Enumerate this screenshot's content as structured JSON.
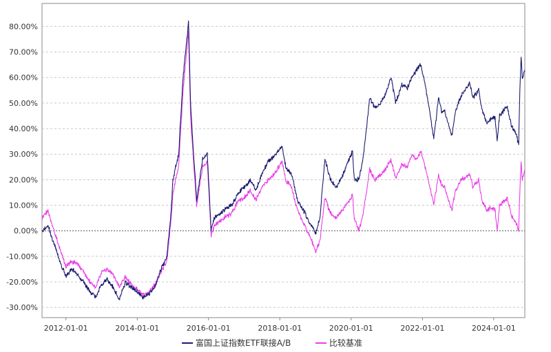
{
  "chart_data": {
    "type": "line",
    "title": "",
    "xlabel": "",
    "ylabel": "",
    "xlim": [
      "2011-05-01",
      "2024-11-15"
    ],
    "ylim": [
      -0.34,
      0.89
    ],
    "y_tick_values": [
      -0.3,
      -0.2,
      -0.1,
      0.0,
      0.1,
      0.2,
      0.3,
      0.4,
      0.5,
      0.6,
      0.7,
      0.8
    ],
    "y_tick_labels": [
      "-30.00%",
      "-20.00%",
      "-10.00%",
      "0.00%",
      "10.00%",
      "20.00%",
      "30.00%",
      "40.00%",
      "50.00%",
      "60.00%",
      "70.00%",
      "80.00%"
    ],
    "x_tick_dates": [
      "2012-01-01",
      "2014-01-01",
      "2016-01-01",
      "2018-01-01",
      "2020-01-01",
      "2022-01-01",
      "2024-01-01"
    ],
    "x_tick_labels": [
      "2012-01-01",
      "2014-01-01",
      "2016-01-01",
      "2018-01-01",
      "2020-01-01",
      "2022-01-01",
      "2024-01-01"
    ],
    "grid": true,
    "legend_position": "bottom",
    "series": [
      {
        "name": "富国上证指数ETF联接A/B",
        "color": "#1a1a6e",
        "points": [
          [
            "2011-05-01",
            0.0
          ],
          [
            "2011-07-01",
            0.02
          ],
          [
            "2011-09-01",
            -0.05
          ],
          [
            "2011-11-01",
            -0.12
          ],
          [
            "2012-01-01",
            -0.18
          ],
          [
            "2012-03-01",
            -0.15
          ],
          [
            "2012-05-01",
            -0.17
          ],
          [
            "2012-07-01",
            -0.2
          ],
          [
            "2012-09-01",
            -0.24
          ],
          [
            "2012-11-01",
            -0.26
          ],
          [
            "2013-01-01",
            -0.21
          ],
          [
            "2013-03-01",
            -0.19
          ],
          [
            "2013-05-01",
            -0.22
          ],
          [
            "2013-07-01",
            -0.27
          ],
          [
            "2013-09-01",
            -0.2
          ],
          [
            "2013-11-01",
            -0.22
          ],
          [
            "2014-01-01",
            -0.24
          ],
          [
            "2014-03-01",
            -0.26
          ],
          [
            "2014-05-01",
            -0.25
          ],
          [
            "2014-07-01",
            -0.22
          ],
          [
            "2014-09-01",
            -0.15
          ],
          [
            "2014-11-01",
            -0.1
          ],
          [
            "2014-12-15",
            0.08
          ],
          [
            "2015-01-01",
            0.2
          ],
          [
            "2015-03-01",
            0.3
          ],
          [
            "2015-04-15",
            0.6
          ],
          [
            "2015-06-10",
            0.82
          ],
          [
            "2015-07-01",
            0.5
          ],
          [
            "2015-08-01",
            0.3
          ],
          [
            "2015-09-01",
            0.12
          ],
          [
            "2015-11-01",
            0.28
          ],
          [
            "2015-12-20",
            0.3
          ],
          [
            "2016-01-28",
            0.0
          ],
          [
            "2016-03-01",
            0.05
          ],
          [
            "2016-06-01",
            0.08
          ],
          [
            "2016-09-01",
            0.1
          ],
          [
            "2016-11-01",
            0.15
          ],
          [
            "2017-01-01",
            0.17
          ],
          [
            "2017-03-01",
            0.2
          ],
          [
            "2017-05-01",
            0.16
          ],
          [
            "2017-07-01",
            0.22
          ],
          [
            "2017-09-01",
            0.27
          ],
          [
            "2017-11-01",
            0.29
          ],
          [
            "2018-01-24",
            0.33
          ],
          [
            "2018-03-01",
            0.25
          ],
          [
            "2018-05-01",
            0.22
          ],
          [
            "2018-07-01",
            0.12
          ],
          [
            "2018-09-01",
            0.08
          ],
          [
            "2018-11-01",
            0.03
          ],
          [
            "2019-01-03",
            -0.01
          ],
          [
            "2019-02-15",
            0.05
          ],
          [
            "2019-04-08",
            0.28
          ],
          [
            "2019-06-01",
            0.2
          ],
          [
            "2019-08-01",
            0.17
          ],
          [
            "2019-10-01",
            0.21
          ],
          [
            "2019-12-01",
            0.27
          ],
          [
            "2020-01-15",
            0.31
          ],
          [
            "2020-02-03",
            0.2
          ],
          [
            "2020-03-20",
            0.2
          ],
          [
            "2020-05-01",
            0.28
          ],
          [
            "2020-07-10",
            0.52
          ],
          [
            "2020-09-01",
            0.48
          ],
          [
            "2020-11-01",
            0.5
          ],
          [
            "2021-01-01",
            0.55
          ],
          [
            "2021-02-15",
            0.6
          ],
          [
            "2021-04-01",
            0.5
          ],
          [
            "2021-06-01",
            0.57
          ],
          [
            "2021-08-01",
            0.56
          ],
          [
            "2021-09-15",
            0.6
          ],
          [
            "2021-11-01",
            0.63
          ],
          [
            "2021-12-15",
            0.65
          ],
          [
            "2022-01-15",
            0.6
          ],
          [
            "2022-03-01",
            0.5
          ],
          [
            "2022-04-27",
            0.36
          ],
          [
            "2022-06-15",
            0.52
          ],
          [
            "2022-07-15",
            0.47
          ],
          [
            "2022-08-15",
            0.47
          ],
          [
            "2022-10-31",
            0.37
          ],
          [
            "2022-12-01",
            0.46
          ],
          [
            "2023-02-01",
            0.53
          ],
          [
            "2023-05-01",
            0.58
          ],
          [
            "2023-06-01",
            0.52
          ],
          [
            "2023-07-31",
            0.55
          ],
          [
            "2023-09-01",
            0.48
          ],
          [
            "2023-10-20",
            0.42
          ],
          [
            "2023-12-01",
            0.44
          ],
          [
            "2024-01-15",
            0.44
          ],
          [
            "2024-02-05",
            0.35
          ],
          [
            "2024-03-01",
            0.45
          ],
          [
            "2024-05-20",
            0.49
          ],
          [
            "2024-07-01",
            0.41
          ],
          [
            "2024-08-15",
            0.38
          ],
          [
            "2024-09-13",
            0.34
          ],
          [
            "2024-09-25",
            0.55
          ],
          [
            "2024-10-08",
            0.68
          ],
          [
            "2024-10-20",
            0.6
          ],
          [
            "2024-11-15",
            0.63
          ]
        ]
      },
      {
        "name": "比较基准",
        "color": "#e83ee8",
        "points": [
          [
            "2011-05-01",
            0.05
          ],
          [
            "2011-07-01",
            0.08
          ],
          [
            "2011-09-01",
            0.0
          ],
          [
            "2011-11-01",
            -0.07
          ],
          [
            "2012-01-01",
            -0.14
          ],
          [
            "2012-03-01",
            -0.12
          ],
          [
            "2012-05-01",
            -0.13
          ],
          [
            "2012-07-01",
            -0.16
          ],
          [
            "2012-09-01",
            -0.2
          ],
          [
            "2012-11-01",
            -0.22
          ],
          [
            "2013-01-01",
            -0.16
          ],
          [
            "2013-03-01",
            -0.15
          ],
          [
            "2013-05-01",
            -0.17
          ],
          [
            "2013-07-01",
            -0.22
          ],
          [
            "2013-09-01",
            -0.18
          ],
          [
            "2013-11-01",
            -0.21
          ],
          [
            "2014-01-01",
            -0.23
          ],
          [
            "2014-03-01",
            -0.25
          ],
          [
            "2014-05-01",
            -0.24
          ],
          [
            "2014-07-01",
            -0.21
          ],
          [
            "2014-09-01",
            -0.16
          ],
          [
            "2014-11-01",
            -0.12
          ],
          [
            "2014-12-15",
            0.05
          ],
          [
            "2015-01-01",
            0.15
          ],
          [
            "2015-03-01",
            0.25
          ],
          [
            "2015-04-15",
            0.55
          ],
          [
            "2015-06-10",
            0.78
          ],
          [
            "2015-07-01",
            0.45
          ],
          [
            "2015-08-01",
            0.27
          ],
          [
            "2015-09-01",
            0.1
          ],
          [
            "2015-11-01",
            0.25
          ],
          [
            "2015-12-20",
            0.27
          ],
          [
            "2016-01-28",
            -0.02
          ],
          [
            "2016-03-01",
            0.02
          ],
          [
            "2016-06-01",
            0.05
          ],
          [
            "2016-09-01",
            0.07
          ],
          [
            "2016-11-01",
            0.12
          ],
          [
            "2017-01-01",
            0.13
          ],
          [
            "2017-03-01",
            0.16
          ],
          [
            "2017-05-01",
            0.12
          ],
          [
            "2017-07-01",
            0.17
          ],
          [
            "2017-09-01",
            0.2
          ],
          [
            "2017-11-01",
            0.22
          ],
          [
            "2018-01-24",
            0.27
          ],
          [
            "2018-03-01",
            0.2
          ],
          [
            "2018-05-01",
            0.17
          ],
          [
            "2018-07-01",
            0.08
          ],
          [
            "2018-09-01",
            0.03
          ],
          [
            "2018-11-01",
            -0.02
          ],
          [
            "2019-01-03",
            -0.08
          ],
          [
            "2019-02-15",
            -0.04
          ],
          [
            "2019-04-08",
            0.13
          ],
          [
            "2019-06-01",
            0.07
          ],
          [
            "2019-08-01",
            0.05
          ],
          [
            "2019-10-01",
            0.08
          ],
          [
            "2019-12-01",
            0.11
          ],
          [
            "2020-01-15",
            0.14
          ],
          [
            "2020-02-03",
            0.05
          ],
          [
            "2020-03-20",
            0.0
          ],
          [
            "2020-05-01",
            0.06
          ],
          [
            "2020-07-10",
            0.24
          ],
          [
            "2020-09-01",
            0.2
          ],
          [
            "2020-11-01",
            0.22
          ],
          [
            "2021-01-01",
            0.25
          ],
          [
            "2021-02-15",
            0.28
          ],
          [
            "2021-04-01",
            0.2
          ],
          [
            "2021-06-01",
            0.26
          ],
          [
            "2021-08-01",
            0.25
          ],
          [
            "2021-09-15",
            0.3
          ],
          [
            "2021-11-01",
            0.28
          ],
          [
            "2021-12-15",
            0.31
          ],
          [
            "2022-01-15",
            0.27
          ],
          [
            "2022-03-01",
            0.2
          ],
          [
            "2022-04-27",
            0.1
          ],
          [
            "2022-06-15",
            0.22
          ],
          [
            "2022-07-15",
            0.18
          ],
          [
            "2022-08-15",
            0.17
          ],
          [
            "2022-10-31",
            0.08
          ],
          [
            "2022-12-01",
            0.15
          ],
          [
            "2023-02-01",
            0.2
          ],
          [
            "2023-05-01",
            0.22
          ],
          [
            "2023-06-01",
            0.17
          ],
          [
            "2023-07-31",
            0.2
          ],
          [
            "2023-09-01",
            0.12
          ],
          [
            "2023-10-20",
            0.08
          ],
          [
            "2023-12-01",
            0.09
          ],
          [
            "2024-01-15",
            0.08
          ],
          [
            "2024-02-05",
            0.0
          ],
          [
            "2024-03-01",
            0.1
          ],
          [
            "2024-05-20",
            0.13
          ],
          [
            "2024-07-01",
            0.06
          ],
          [
            "2024-08-15",
            0.03
          ],
          [
            "2024-09-13",
            0.0
          ],
          [
            "2024-09-25",
            0.15
          ],
          [
            "2024-10-08",
            0.27
          ],
          [
            "2024-10-20",
            0.2
          ],
          [
            "2024-11-15",
            0.24
          ]
        ]
      }
    ]
  }
}
